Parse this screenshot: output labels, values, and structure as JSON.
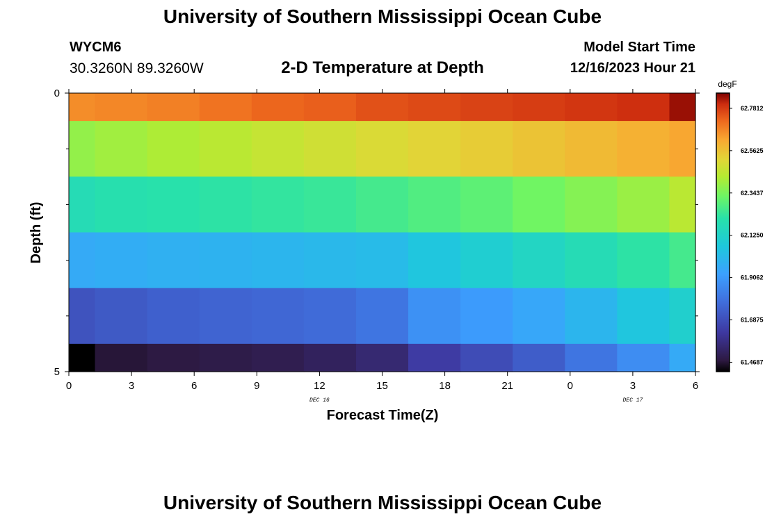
{
  "header": {
    "title": "University of Southern Mississippi Ocean Cube",
    "station_id": "WYCM6",
    "coordinates": "30.3260N  89.3260W",
    "subtitle": "2-D Temperature at Depth",
    "model_start_label": "Model Start Time",
    "model_start_value": "12/16/2023 Hour 21"
  },
  "footer": {
    "title": "University of Southern Mississippi Ocean Cube"
  },
  "chart_data": {
    "type": "heatmap",
    "title": "2-D Temperature at Depth",
    "xlabel": "Forecast Time(Z)",
    "ylabel": "Depth (ft)",
    "x_tick_labels": [
      "0",
      "3",
      "6",
      "9",
      "12",
      "15",
      "18",
      "21",
      "0",
      "3",
      "6"
    ],
    "x_range_hours": [
      0,
      30
    ],
    "date_labels": [
      {
        "text": "DEC 16",
        "hour": 12
      },
      {
        "text": "DEC 17",
        "hour": 27
      }
    ],
    "y_tick_labels": [
      "0",
      "5"
    ],
    "y_range": [
      0,
      5
    ],
    "y_minor_ticks": [
      1,
      2,
      3,
      4
    ],
    "colorbar": {
      "unit": "degF",
      "min": 61.42,
      "max": 62.86,
      "tick_labels": [
        "62.7812",
        "62.5625",
        "62.3437",
        "62.1250",
        "61.9062",
        "61.6875",
        "61.4687"
      ],
      "tick_values": [
        62.7812,
        62.5625,
        62.3437,
        62.125,
        61.9062,
        61.6875,
        61.4687
      ]
    },
    "time_edges_hours": [
      0,
      1.25,
      3.75,
      6.25,
      8.75,
      11.25,
      13.75,
      16.25,
      18.75,
      21.25,
      23.75,
      26.25,
      28.75,
      30
    ],
    "depth_edges_ft": [
      0,
      0.5,
      1.5,
      2.5,
      3.5,
      4.5,
      5
    ],
    "values_degF": [
      [
        62.66,
        62.67,
        62.68,
        62.7,
        62.72,
        62.73,
        62.75,
        62.76,
        62.77,
        62.78,
        62.79,
        62.8,
        62.84
      ],
      [
        62.38,
        62.4,
        62.42,
        62.44,
        62.46,
        62.48,
        62.5,
        62.52,
        62.54,
        62.56,
        62.58,
        62.6,
        62.62
      ],
      [
        62.18,
        62.2,
        62.21,
        62.22,
        62.23,
        62.24,
        62.26,
        62.28,
        62.3,
        62.33,
        62.36,
        62.39,
        62.44
      ],
      [
        61.96,
        61.97,
        61.98,
        61.99,
        62.0,
        62.01,
        62.02,
        62.06,
        62.1,
        62.14,
        62.18,
        62.22,
        62.26
      ],
      [
        61.7,
        61.72,
        61.74,
        61.75,
        61.76,
        61.77,
        61.8,
        61.88,
        61.91,
        61.95,
        62.0,
        62.06,
        62.11
      ],
      [
        61.42,
        61.47,
        61.48,
        61.49,
        61.5,
        61.52,
        61.55,
        61.63,
        61.68,
        61.73,
        61.8,
        61.87,
        61.96
      ]
    ]
  }
}
